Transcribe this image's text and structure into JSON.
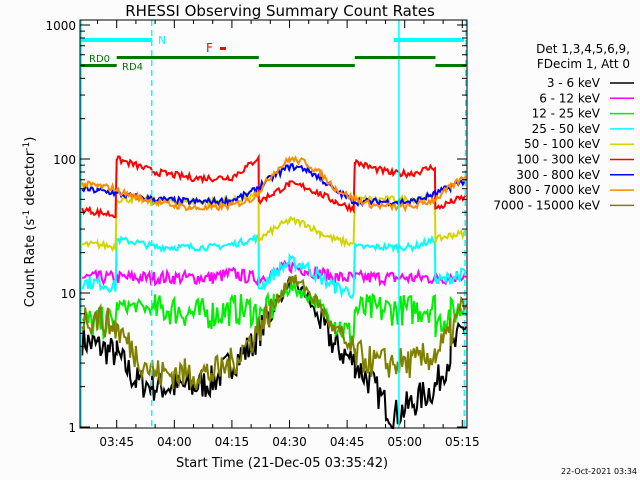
{
  "chart_data": {
    "type": "line",
    "title": "RHESSI Observing Summary Count Rates",
    "xlabel": "Start Time (21-Dec-05 03:35:42)",
    "ylabel": "Count Rate (s",
    "ylabel_sup1": "-1",
    "ylabel_mid": " detector",
    "ylabel_sup2": "-1",
    "ylabel_end": ")",
    "yscale": "log",
    "ylim": [
      1,
      1000
    ],
    "xlim": [
      "03:35:42",
      "05:16"
    ],
    "x_ticks": [
      "03:45",
      "04:00",
      "04:15",
      "04:30",
      "04:45",
      "05:00",
      "05:15"
    ],
    "y_ticks": [
      "1",
      "10",
      "100",
      "1000"
    ],
    "grid": false,
    "legend_placement": "right",
    "legend_header": [
      "Det 1,3,4,5,6,9,",
      "FDecim 1, Att 0"
    ],
    "timestamp": "22-Oct-2021 03:34",
    "x": [
      "03:36",
      "03:40",
      "03:45",
      "03:45",
      "03:50",
      "03:55",
      "04:00",
      "04:05",
      "04:10",
      "04:15",
      "04:20",
      "04:22",
      "04:22",
      "04:26",
      "04:30",
      "04:34",
      "04:38",
      "04:42",
      "04:47",
      "04:47",
      "04:52",
      "04:57",
      "05:02",
      "05:08",
      "05:08",
      "05:12",
      "05:16"
    ],
    "series": [
      {
        "name": "3 - 6 keV",
        "color": "#000000",
        "values": [
          4.5,
          4,
          3.5,
          3.5,
          2.2,
          2,
          2,
          2,
          2.2,
          3,
          4,
          5,
          5,
          8,
          12,
          10,
          6,
          4,
          3,
          3,
          2,
          1.2,
          1.5,
          2,
          2,
          3.5,
          6
        ]
      },
      {
        "name": "6 - 12 keV",
        "color": "#ff00ff",
        "values": [
          13,
          13,
          13,
          13,
          13,
          13,
          13,
          13,
          13,
          14,
          13,
          13,
          13,
          14,
          16,
          15,
          14,
          13,
          13,
          13,
          13,
          13,
          13,
          13,
          13,
          13,
          14
        ]
      },
      {
        "name": "12 - 25 keV",
        "color": "#00ee00",
        "values": [
          6,
          6,
          6,
          8,
          8,
          7.5,
          7.5,
          7,
          7,
          7.5,
          7.5,
          7,
          6.5,
          8,
          11,
          10,
          8,
          6,
          4.5,
          7.5,
          7.5,
          7.5,
          7.5,
          8,
          6,
          7,
          8
        ]
      },
      {
        "name": "25 - 50 keV",
        "color": "#00ffff",
        "values": [
          12,
          12,
          11,
          25,
          24,
          22,
          22,
          22,
          22,
          23,
          25,
          26,
          11,
          14,
          17,
          16,
          13,
          11,
          10,
          22,
          22,
          22,
          22,
          25,
          12,
          13,
          14
        ]
      },
      {
        "name": "50 - 100 keV",
        "color": "#d4d400",
        "values": [
          23,
          23,
          22,
          50,
          50,
          48,
          48,
          48,
          48,
          49,
          52,
          55,
          25,
          30,
          35,
          33,
          28,
          25,
          23,
          50,
          50,
          50,
          50,
          52,
          25,
          27,
          28
        ]
      },
      {
        "name": "100 - 300 keV",
        "color": "#ff0000",
        "values": [
          42,
          40,
          38,
          100,
          90,
          80,
          76,
          72,
          72,
          73,
          92,
          105,
          48,
          56,
          65,
          62,
          55,
          48,
          42,
          95,
          85,
          78,
          78,
          88,
          42,
          48,
          52
        ]
      },
      {
        "name": "300 - 800 keV",
        "color": "#0000ff",
        "values": [
          60,
          58,
          56,
          55,
          52,
          50,
          49,
          48,
          48,
          49,
          56,
          62,
          62,
          75,
          88,
          85,
          72,
          58,
          48,
          48,
          48,
          48,
          48,
          55,
          55,
          62,
          70
        ]
      },
      {
        "name": "800 - 7000 keV",
        "color": "#ff8c00",
        "values": [
          65,
          63,
          60,
          58,
          52,
          48,
          45,
          43,
          43,
          45,
          50,
          57,
          57,
          80,
          100,
          95,
          78,
          60,
          50,
          50,
          45,
          44,
          44,
          50,
          50,
          62,
          75
        ]
      },
      {
        "name": "7000 - 15000 keV",
        "color": "#808000",
        "values": [
          6.5,
          6.5,
          5.5,
          5.5,
          3.5,
          2.5,
          2.5,
          2.5,
          2.5,
          3,
          4.5,
          5.5,
          5.5,
          8,
          13,
          11,
          8,
          5,
          3.5,
          3.5,
          3,
          3,
          3,
          3.5,
          3.5,
          5,
          9
        ]
      }
    ],
    "annotations": {
      "night_label": "N",
      "night_color": "#00ffff",
      "night_intervals": [
        [
          "03:35:42",
          "03:45"
        ],
        [
          "04:58:30",
          "05:16"
        ]
      ],
      "night_start_lines": [
        "03:35:42",
        "04:58:30"
      ],
      "night_end_lines": [
        "03:45",
        "05:16"
      ],
      "flare_label": "F",
      "flare_color": "#ff0000",
      "flare_marker_time": "04:07",
      "decim_color": "#007700",
      "rd0_label": "RD0",
      "rd4_label": "RD4",
      "rd0_intervals": [
        [
          "03:45",
          "04:22"
        ],
        [
          "04:47",
          "05:08"
        ]
      ],
      "rd4_intervals": [
        [
          "03:35:42",
          "03:45"
        ],
        [
          "04:22",
          "04:47"
        ],
        [
          "05:08",
          "05:16"
        ]
      ]
    }
  }
}
